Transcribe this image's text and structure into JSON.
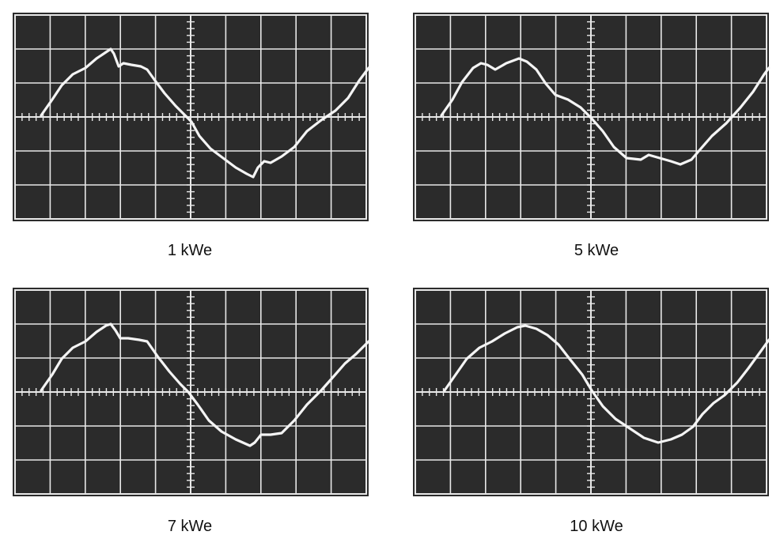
{
  "panels": [
    {
      "caption": "1 kWe"
    },
    {
      "caption": "5 kWe"
    },
    {
      "caption": "7 kWe"
    },
    {
      "caption": "10 kWe"
    }
  ]
}
